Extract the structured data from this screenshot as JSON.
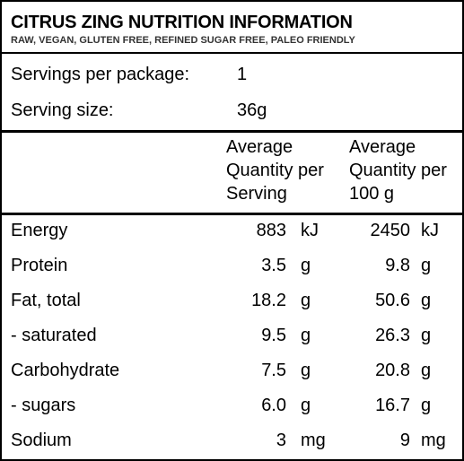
{
  "panel": {
    "title": "CITRUS ZING NUTRITION INFORMATION",
    "subtitle": "RAW, VEGAN, GLUTEN FREE, REFINED SUGAR FREE, PALEO FRIENDLY"
  },
  "servings": {
    "per_package_label": "Servings per package:",
    "per_package_value": "1",
    "size_label": "Serving size:",
    "size_value": "36g"
  },
  "columns": {
    "per_serving": [
      "Average",
      "Quantity per",
      "Serving"
    ],
    "per_100g": [
      "Average",
      "Quantity per",
      "100 g"
    ]
  },
  "rows": [
    {
      "label": "Energy",
      "serving": "883",
      "serving_unit": "kJ",
      "per100": "2450",
      "per100_unit": "kJ"
    },
    {
      "label": "Protein",
      "serving": "3.5",
      "serving_unit": "g",
      "per100": "9.8",
      "per100_unit": "g"
    },
    {
      "label": "Fat, total",
      "serving": "18.2",
      "serving_unit": "g",
      "per100": "50.6",
      "per100_unit": "g"
    },
    {
      "label": "- saturated",
      "serving": "9.5",
      "serving_unit": "g",
      "per100": "26.3",
      "per100_unit": "g"
    },
    {
      "label": "Carbohydrate",
      "serving": "7.5",
      "serving_unit": "g",
      "per100": "20.8",
      "per100_unit": "g"
    },
    {
      "label": "- sugars",
      "serving": "6.0",
      "serving_unit": "g",
      "per100": "16.7",
      "per100_unit": "g"
    },
    {
      "label": "Sodium",
      "serving": "3",
      "serving_unit": "mg",
      "per100": "9",
      "per100_unit": "mg"
    }
  ]
}
